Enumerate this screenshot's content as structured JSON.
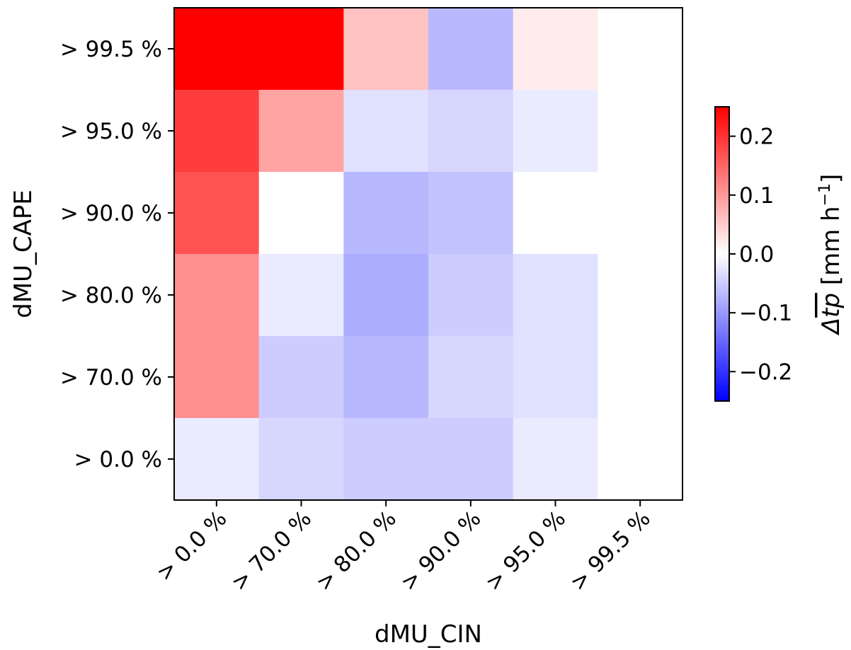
{
  "chart_data": {
    "type": "heatmap",
    "title": "",
    "xlabel": "dMU_CIN",
    "ylabel": "dMU_CAPE",
    "x_categories": [
      "> 0.0 %",
      "> 70.0 %",
      "> 80.0 %",
      "> 90.0 %",
      "> 95.0 %",
      "> 99.5 %"
    ],
    "y_categories": [
      "> 99.5 %",
      "> 95.0 %",
      "> 90.0 %",
      "> 80.0 %",
      "> 70.0 %",
      "> 0.0 %"
    ],
    "values": [
      [
        0.26,
        0.26,
        0.06,
        -0.07,
        0.02,
        0.0
      ],
      [
        0.19,
        0.09,
        -0.03,
        -0.04,
        -0.02,
        0.0
      ],
      [
        0.17,
        0.0,
        -0.07,
        -0.06,
        0.0,
        0.0
      ],
      [
        0.11,
        -0.02,
        -0.08,
        -0.05,
        -0.03,
        0.0
      ],
      [
        0.11,
        -0.05,
        -0.07,
        -0.04,
        -0.03,
        0.0
      ],
      [
        -0.02,
        -0.04,
        -0.05,
        -0.05,
        -0.02,
        0.0
      ]
    ],
    "colorbar": {
      "label_parts": [
        "Δ",
        "tp",
        " [mm h",
        "−1",
        "]"
      ],
      "range": [
        -0.25,
        0.25
      ],
      "ticks": [
        0.2,
        0.1,
        0.0,
        -0.1,
        -0.2
      ],
      "tick_labels": [
        "0.2",
        "0.1",
        "0.0",
        "−0.1",
        "−0.2"
      ],
      "colormap": "bwr",
      "low_color": "#0000ff",
      "mid_color": "#ffffff",
      "high_color": "#ff0000"
    },
    "grid": false
  }
}
